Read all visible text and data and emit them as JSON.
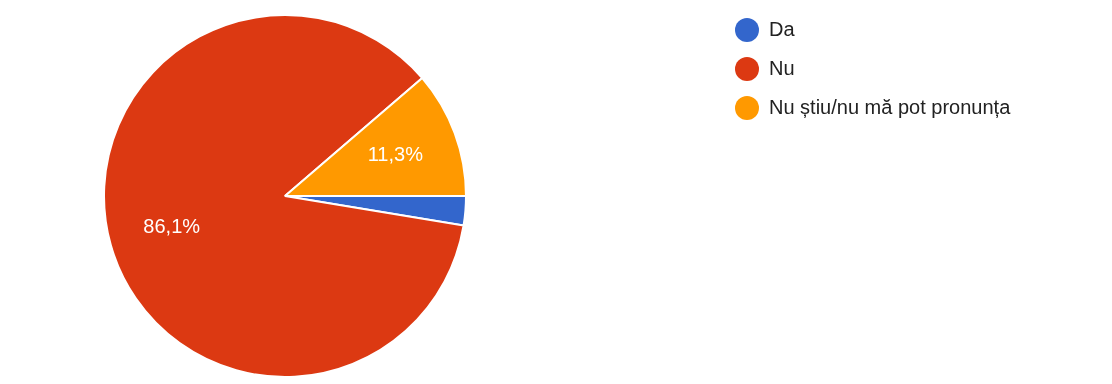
{
  "chart_data": {
    "type": "pie",
    "categories": [
      "Da",
      "Nu",
      "Nu știu/nu mă pot pronunța"
    ],
    "values": [
      2.6,
      86.1,
      11.3
    ],
    "colors": [
      "#3366cc",
      "#dc3912",
      "#ff9900"
    ],
    "value_labels": [
      null,
      "86,1%",
      "11,3%"
    ],
    "legend": "top right"
  }
}
